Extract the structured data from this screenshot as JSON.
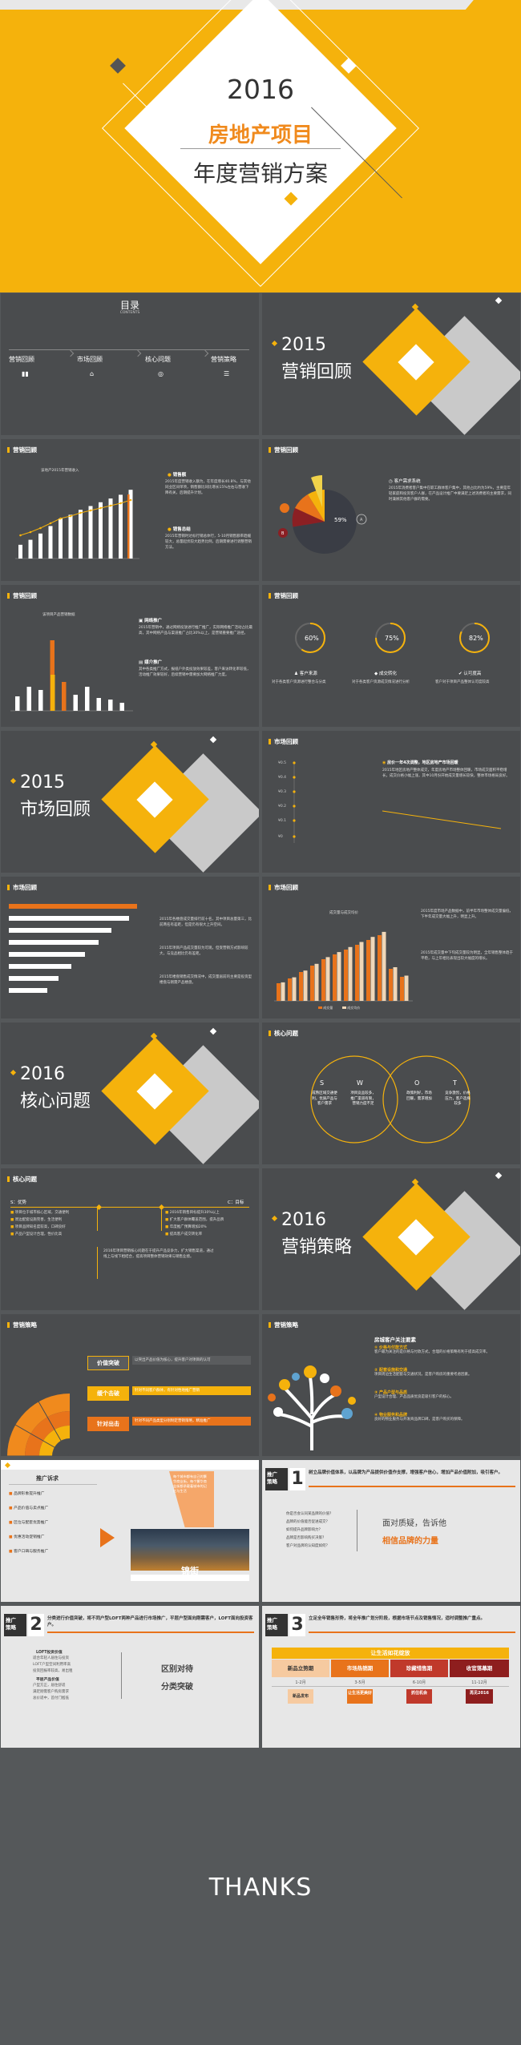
{
  "cover": {
    "year": "2016",
    "line1": "房地产项目",
    "line2": "年度营销方案"
  },
  "s2": {
    "title": "目录",
    "sub": "CONTENTS",
    "items": [
      "营销回顾",
      "市场回顾",
      "核心问题",
      "营销策略"
    ]
  },
  "s3": {
    "year": "2015",
    "title": "营销回顾"
  },
  "s4": {
    "header": "营销回顾",
    "chart_title": "该地产2015年营销收入",
    "p1_title": "销售额",
    "p1": "2015年度营销收入额为，在年度增长40.8%，与其他同业区间单项，销售额比同比增长15%左右与营收下降有关，后期提升计划。",
    "p2_title": "销售总结",
    "p2": "2015年营销时达标行销总体行，5-10月销售额率趋缓较大，总量起伏较大趋势比例，后期需要进行调整营销方法。"
  },
  "s5": {
    "header": "营销回顾",
    "pie_center": "59%",
    "b_label": "B",
    "a_label": "A",
    "title": "客户需求系统",
    "text": "2015年消费者客户集中在职工群体客户集中，其他占比约为59%，主要是年轻家庭和投资客户人群，在产品设计推广中要满足上述消费者的主要需求，同时兼顾其他客户群的需要。"
  },
  "s6": {
    "header": "营销回顾",
    "chart_title": "该项目产品营销数据",
    "p1_title": "网络推广",
    "p1": "2015年营销中，通过网络投放进行推广推广，实际网络推广活动占比最高，其中网络产品与渠道推广占比30%以上，是营销重要推广途径。",
    "p2_title": "媒介推广",
    "p2": "其中各类推广方式，报纸户外类投放效果较差，客户来访转化率较低，活动推广效果较好，后续营销中需要加大网络推广力度。"
  },
  "s7": {
    "header": "营销回顾",
    "rings": [
      {
        "pct": "60%",
        "label": "客户来源",
        "text": "对于各类客户资源进行整合与分类"
      },
      {
        "pct": "75%",
        "label": "成交转化",
        "text": "对于各类客户资源成交情况进行分析"
      },
      {
        "pct": "82%",
        "label": "认可度高",
        "text": "客户对于项目产品整体认可度较高"
      }
    ]
  },
  "s8": {
    "year": "2015",
    "title": "市场回顾"
  },
  "s9": {
    "header": "市场回顾",
    "title": "房价一年4次调整，地区房地产市场回暖",
    "text": "2015年地区房地产整体成交，年度房地产市场整体回暖，市场成交面积平稳增长，成交价格小幅上涨，其中10月份开始成交量增长较快，整体市场格局良好。",
    "ylabels": [
      "¥0.5",
      "¥0.4",
      "¥0.3",
      "¥0.2",
      "¥0.1",
      "¥0"
    ]
  },
  "s10": {
    "header": "市场回顾",
    "p1": "2015年各楼盘成交量排行前十名，其中项目总量第三，比前两名有差距，但是仍有很大上升空间。",
    "p2": "2015年项目产品成交量较为可观，但受营销方式影响较大，与竞品相比仍有差距。",
    "p3": "2015年楼盘销售成交情况中，成交量居前的主要是投资型楼盘与刚需产品楼盘。"
  },
  "s11": {
    "header": "市场回顾",
    "chart_title": "成交量与成交均价",
    "p1": "2015年度市场产品数据中，前半年市场整体成交量偏低，下半年成交量大幅上升，明显上升。",
    "p2": "2015年成交量中下旬成交量较为明显，全年销售整体趋于平稳，与上年相比表现出较大幅度的增长。",
    "legend": [
      "成交量",
      "成交均价"
    ]
  },
  "s12": {
    "year": "2016",
    "title1": "核心",
    "title2": "问题"
  },
  "s13": {
    "header": "核心问题",
    "letters": [
      "S",
      "W",
      "O",
      "T"
    ],
    "texts": [
      "成熟区域交通便利，优质产品与客户需求",
      "项目竞品较多，推广渠道有限，营销力度不足",
      "政策利好，市场回暖，需求增加",
      "竞争激烈，价格压力，客户选择较多"
    ]
  },
  "s14": {
    "header": "核心问题",
    "left_label": "S：优势",
    "right_label": "C：目标",
    "left": [
      "项目位于城市核心区域，交通便利",
      "周边配套设施完善，生活便利",
      "项目品牌知名度较高，口碑良好",
      "产品户型设计合理，性价比高"
    ],
    "right": [
      "2016年销售目标提升30%以上",
      "扩大客户群体覆盖范围，提升品牌",
      "年度推广预算增加20%",
      "提高客户成交转化率"
    ],
    "bottom": "2016年项目营销核心问题在于提升产品竞争力，扩大销售渠道，通过线上与线下相结合，提高项目整体营销效果与销售业绩。"
  },
  "s15": {
    "year": "2016",
    "title": "营销策略"
  },
  "s16": {
    "header": "营销策略",
    "items": [
      {
        "label": "价值突破",
        "text": "以突出产品价值为核心，提升客户对项目的认可"
      },
      {
        "label": "缓个击破",
        "text": "针对不同客户群体，有针对性地推广营销"
      },
      {
        "label": "针对出击",
        "text": "针对不同产品类型分别制定营销策略，精准推广"
      }
    ]
  },
  "s17": {
    "header": "营销策略",
    "title": "房城客户关注要素",
    "items": [
      {
        "title": "价格与付款方式",
        "text": "客户最为关注的是价格与付款方式，合理的价格策略有利于提高成交率。"
      },
      {
        "title": "配套设施和交通",
        "text": "项目周边生活配套与交通状况，是客户购房的重要考虑因素。"
      },
      {
        "title": "产品户型与品质",
        "text": "户型设计合理、产品品质优良是吸引客户的核心。"
      },
      {
        "title": "物业服务和品牌",
        "text": "良好的物业服务与开发商品牌口碑，是客户购买的保障。"
      }
    ]
  },
  "s18": {
    "title": "推广诉求",
    "items": [
      "品牌形象提升推广",
      "产品价值与卖点推广",
      "区位与配套优势推广",
      "优惠活动促销推广",
      "客户口碑与服务推广"
    ],
    "card_text": "每个城市都有自己的繁华商业街，每个繁华商业街都承载着城市的记忆与生活",
    "banner": "锦街"
  },
  "s19": {
    "tag1": "推广",
    "tag2": "策略",
    "num": "1",
    "desc": "树立品牌价值体系，以品牌为产品提供价值作支撑，增强客户信心，增加产品价值附加，吸引客户。",
    "q1": "你是否会认同某品牌的价值？",
    "q2": "品牌的价值能否促进成交？",
    "q3": "如何提升品牌影响力？",
    "q4": "品牌是否影响购买决策？",
    "q5": "客户对品牌的认知度如何？",
    "big1": "面对质疑，告诉他",
    "big2": "相信品牌的力量"
  },
  "s20": {
    "tag1": "推广",
    "tag2": "策略",
    "num": "2",
    "desc": "分类进行价值突破，将不同户型LOFT两种产品进行市场推广，平层户型面向刚需客户，LOFT面向投资客户。",
    "sub_title1": "LOFT投资价值",
    "lines1": [
      "适合年轻人居住与投资",
      "LOFT户型空间利用率高",
      "投资回报率较高，易出租"
    ],
    "sub_title2": "平层产品价值",
    "lines2": [
      "户型方正，居住舒适",
      "满足刚需客户购房需求",
      "总价适中，首付门槛低"
    ],
    "big1": "区别对待",
    "big2": "分类突破"
  },
  "s21": {
    "tag1": "推广",
    "tag2": "策略",
    "num": "3",
    "desc": "立足全年销售形势，将全年推广划分阶段，根据市场节点及销售情况，适时调整推广重点。",
    "banner": "让生活如花绽放",
    "cols": [
      {
        "title": "新品立势期",
        "months": "1-2月",
        "tag": "新品发布"
      },
      {
        "title": "市场热销期",
        "months": "3-5月",
        "tag": "让生活更美好"
      },
      {
        "title": "珍藏惜售期",
        "months": "6-10月",
        "tag": "抓住机会"
      },
      {
        "title": "收官落幕期",
        "months": "11-12月",
        "tag": "再见2016"
      }
    ]
  },
  "thanks": "THANKS"
}
